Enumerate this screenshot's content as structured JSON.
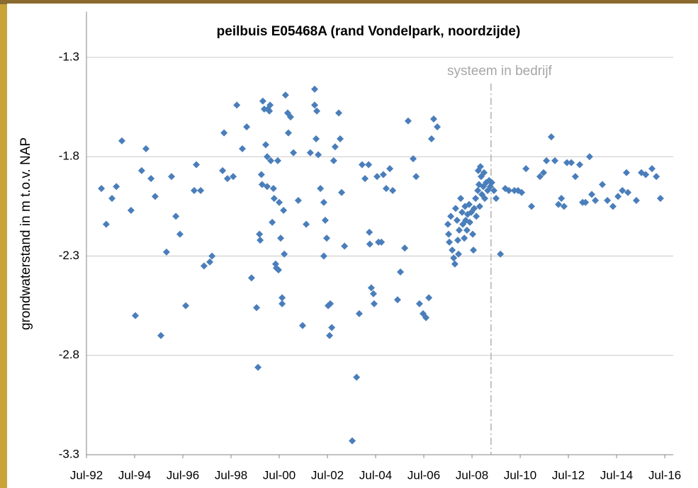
{
  "chart_data": {
    "type": "scatter",
    "title": "peilbuis E05468A (rand Vondelpark, noordzijde)",
    "y_label": "grondwaterstand in m t.o.v. NAP",
    "color": "#4a7ebb",
    "grid": true,
    "xlim": [
      1992.5,
      2016.85
    ],
    "ylim": [
      -3.3,
      -1.07
    ],
    "yticks": [
      -3.3,
      -2.8,
      -2.3,
      -1.8,
      -1.3
    ],
    "xticks": [
      {
        "value": 1992.5,
        "label": "Jul-92"
      },
      {
        "value": 1994.5,
        "label": "Jul-94"
      },
      {
        "value": 1996.5,
        "label": "Jul-96"
      },
      {
        "value": 1998.5,
        "label": "Jul-98"
      },
      {
        "value": 2000.5,
        "label": "Jul-00"
      },
      {
        "value": 2002.5,
        "label": "Jul-02"
      },
      {
        "value": 2004.5,
        "label": "Jul-04"
      },
      {
        "value": 2006.5,
        "label": "Jul-06"
      },
      {
        "value": 2008.5,
        "label": "Jul-08"
      },
      {
        "value": 2010.5,
        "label": "Jul-10"
      },
      {
        "value": 2012.5,
        "label": "Jul-12"
      },
      {
        "value": 2014.5,
        "label": "Jul-14"
      },
      {
        "value": 2016.5,
        "label": "Jul-16"
      }
    ],
    "annotation": {
      "x": 2009.29,
      "label": "systeem in bedrijf"
    },
    "x": [
      1993.12,
      1993.32,
      1993.56,
      1993.74,
      1993.97,
      1994.35,
      1994.53,
      1994.79,
      1994.97,
      1995.18,
      1995.35,
      1995.59,
      1995.82,
      1996.03,
      1996.21,
      1996.38,
      1996.62,
      1996.97,
      1997.06,
      1997.24,
      1997.38,
      1997.62,
      1997.71,
      1998.15,
      1998.21,
      1998.35,
      1998.59,
      1998.74,
      1998.97,
      1999.15,
      1999.35,
      1999.56,
      1999.62,
      1999.68,
      1999.71,
      1999.76,
      1999.79,
      1999.82,
      1999.88,
      1999.94,
      2000.0,
      2000.0,
      2000.03,
      2000.09,
      2000.12,
      2000.15,
      2000.21,
      2000.26,
      2000.29,
      2000.35,
      2000.38,
      2000.44,
      2000.47,
      2000.5,
      2000.56,
      2000.62,
      2000.62,
      2000.68,
      2000.71,
      2000.76,
      2000.85,
      2000.88,
      2000.97,
      2001.09,
      2001.29,
      2001.47,
      2001.62,
      2001.79,
      2001.97,
      2001.97,
      2002.06,
      2002.03,
      2002.12,
      2002.21,
      2002.35,
      2002.35,
      2002.41,
      2002.47,
      2002.53,
      2002.59,
      2002.62,
      2002.68,
      2002.76,
      2002.82,
      2002.97,
      2003.03,
      2003.09,
      2003.21,
      2003.53,
      2003.71,
      2003.82,
      2003.94,
      2004.06,
      2004.21,
      2004.24,
      2004.26,
      2004.32,
      2004.41,
      2004.44,
      2004.56,
      2004.62,
      2004.74,
      2004.82,
      2004.94,
      2005.09,
      2005.21,
      2005.41,
      2005.53,
      2005.71,
      2005.85,
      2006.06,
      2006.18,
      2006.32,
      2006.47,
      2006.59,
      2006.71,
      2006.82,
      2006.91,
      2007.06,
      2007.5,
      2007.53,
      2007.56,
      2007.62,
      2007.68,
      2007.74,
      2007.79,
      2007.82,
      2007.88,
      2007.91,
      2007.94,
      2007.97,
      2008.03,
      2008.09,
      2008.12,
      2008.18,
      2008.21,
      2008.24,
      2008.29,
      2008.32,
      2008.38,
      2008.41,
      2008.47,
      2008.53,
      2008.56,
      2008.59,
      2008.65,
      2008.68,
      2008.74,
      2008.76,
      2008.79,
      2008.82,
      2008.85,
      2008.88,
      2008.91,
      2008.97,
      2009.0,
      2009.03,
      2009.09,
      2009.15,
      2009.21,
      2009.26,
      2009.32,
      2009.41,
      2009.5,
      2009.68,
      2009.88,
      2010.03,
      2010.26,
      2010.41,
      2010.56,
      2010.74,
      2010.97,
      2011.32,
      2011.47,
      2011.59,
      2011.79,
      2011.94,
      2012.09,
      2012.21,
      2012.32,
      2012.44,
      2012.62,
      2012.79,
      2012.97,
      2013.09,
      2013.21,
      2013.38,
      2013.47,
      2013.62,
      2013.91,
      2014.12,
      2014.35,
      2014.56,
      2014.74,
      2014.91,
      2014.97,
      2015.32,
      2015.53,
      2015.71,
      2015.97,
      2016.15,
      2016.32
    ],
    "values": [
      -1.96,
      -2.14,
      -2.01,
      -1.95,
      -1.72,
      -2.07,
      -2.6,
      -1.87,
      -1.76,
      -1.91,
      -2.0,
      -2.7,
      -2.28,
      -1.9,
      -2.1,
      -2.19,
      -2.55,
      -1.97,
      -1.84,
      -1.97,
      -2.35,
      -2.33,
      -2.3,
      -1.87,
      -1.68,
      -1.91,
      -1.9,
      -1.54,
      -1.76,
      -1.65,
      -2.41,
      -2.56,
      -2.86,
      -2.19,
      -2.22,
      -1.89,
      -1.94,
      -1.52,
      -1.56,
      -1.74,
      -1.95,
      -1.8,
      -1.56,
      -1.57,
      -1.54,
      -1.82,
      -2.13,
      -1.96,
      -2.01,
      -2.34,
      -2.36,
      -1.82,
      -2.37,
      -2.03,
      -2.21,
      -2.54,
      -2.51,
      -2.07,
      -2.29,
      -1.49,
      -1.58,
      -1.68,
      -1.6,
      -1.78,
      -2.02,
      -2.65,
      -2.14,
      -1.78,
      -1.46,
      -1.54,
      -1.57,
      -1.71,
      -1.79,
      -1.96,
      -2.03,
      -2.3,
      -2.12,
      -2.21,
      -2.55,
      -2.7,
      -2.54,
      -2.66,
      -1.82,
      -1.75,
      -1.58,
      -1.71,
      -1.98,
      -2.25,
      -3.23,
      -2.91,
      -2.59,
      -1.84,
      -1.91,
      -1.84,
      -2.18,
      -2.24,
      -2.46,
      -2.49,
      -2.54,
      -1.9,
      -2.23,
      -2.23,
      -1.89,
      -1.96,
      -1.86,
      -1.97,
      -2.52,
      -2.38,
      -2.26,
      -1.62,
      -1.81,
      -1.9,
      -2.54,
      -2.59,
      -2.61,
      -2.51,
      -1.71,
      -1.61,
      -1.65,
      -2.14,
      -2.19,
      -2.23,
      -2.1,
      -2.27,
      -2.31,
      -2.34,
      -2.06,
      -2.12,
      -2.22,
      -2.29,
      -2.17,
      -2.01,
      -2.08,
      -2.14,
      -2.21,
      -2.05,
      -2.12,
      -2.17,
      -2.09,
      -2.04,
      -2.13,
      -2.08,
      -2.19,
      -2.27,
      -2.06,
      -2.01,
      -2.1,
      -1.97,
      -1.87,
      -1.94,
      -2.05,
      -1.85,
      -1.9,
      -1.99,
      -1.95,
      -1.88,
      -2.01,
      -1.93,
      -1.97,
      -1.92,
      -1.95,
      -1.93,
      -1.97,
      -2.01,
      -2.29,
      -1.96,
      -1.97,
      -1.97,
      -1.97,
      -1.98,
      -1.86,
      -2.05,
      -1.9,
      -1.88,
      -1.82,
      -1.7,
      -1.82,
      -2.04,
      -2.01,
      -2.05,
      -1.83,
      -1.83,
      -1.9,
      -1.84,
      -2.03,
      -2.03,
      -1.8,
      -1.99,
      -2.02,
      -1.94,
      -2.02,
      -2.05,
      -2.0,
      -1.97,
      -1.88,
      -1.98,
      -2.02,
      -1.88,
      -1.89,
      -1.86,
      -1.9,
      -2.01
    ]
  }
}
